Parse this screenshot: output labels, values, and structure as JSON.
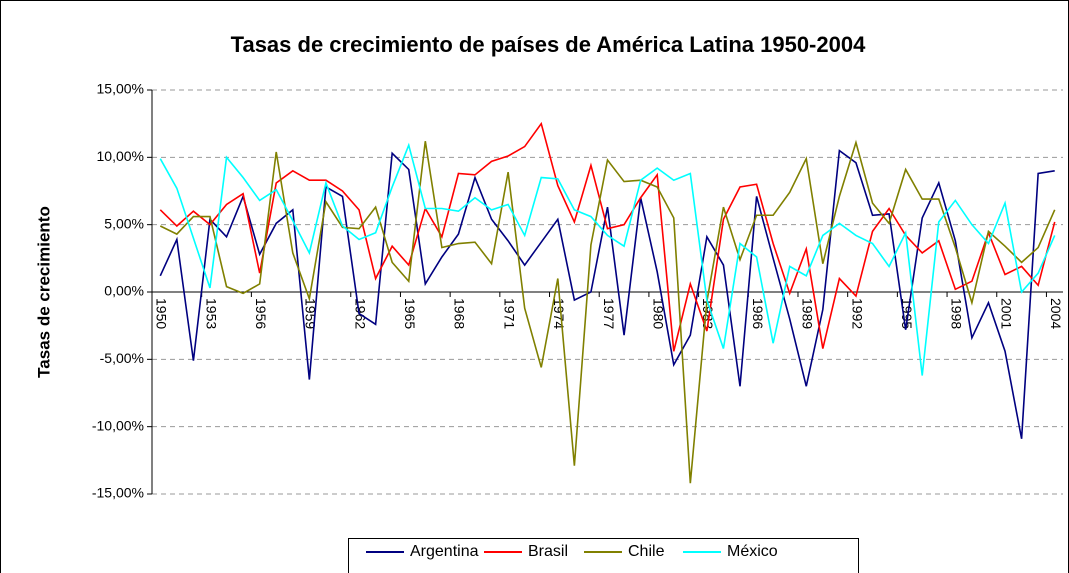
{
  "chart_data": {
    "type": "line",
    "title": "Tasas de crecimiento de países de América Latina 1950-2004",
    "y_label": "Tasas de crecimiento",
    "x": [
      1950,
      1951,
      1952,
      1953,
      1954,
      1955,
      1956,
      1957,
      1958,
      1959,
      1960,
      1961,
      1962,
      1963,
      1964,
      1965,
      1966,
      1967,
      1968,
      1969,
      1970,
      1971,
      1972,
      1973,
      1974,
      1975,
      1976,
      1977,
      1978,
      1979,
      1980,
      1981,
      1982,
      1983,
      1984,
      1985,
      1986,
      1987,
      1988,
      1989,
      1990,
      1991,
      1992,
      1993,
      1994,
      1995,
      1996,
      1997,
      1998,
      1999,
      2000,
      2001,
      2002,
      2003,
      2004
    ],
    "xlim": [
      1950,
      2004
    ],
    "xticks": [
      1950,
      1953,
      1956,
      1959,
      1962,
      1965,
      1968,
      1971,
      1974,
      1977,
      1980,
      1983,
      1986,
      1989,
      1992,
      1995,
      1998,
      2001,
      2004
    ],
    "ylim": [
      -15,
      15
    ],
    "yticks": [
      {
        "value": -15,
        "label": "-15,00%"
      },
      {
        "value": -10,
        "label": "-10,00%"
      },
      {
        "value": -5,
        "label": "-5,00%"
      },
      {
        "value": 0,
        "label": "0,00%"
      },
      {
        "value": 5,
        "label": "5,00%"
      },
      {
        "value": 10,
        "label": "10,00%"
      },
      {
        "value": 15,
        "label": "15,00%"
      }
    ],
    "grid": true,
    "legend": "bottom",
    "series": [
      {
        "name": "Argentina",
        "color": "#000080",
        "values": [
          1.2,
          3.9,
          -5.1,
          5.4,
          4.1,
          7.1,
          2.8,
          5.1,
          6.1,
          -6.5,
          7.8,
          7.1,
          -1.6,
          -2.4,
          10.3,
          9.1,
          0.6,
          2.6,
          4.3,
          8.5,
          5.4,
          3.8,
          2.0,
          3.7,
          5.4,
          -0.6,
          0.0,
          6.3,
          -3.2,
          7.0,
          1.5,
          -5.4,
          -3.2,
          4.1,
          2.0,
          -7.0,
          7.1,
          2.5,
          -2.0,
          -7.0,
          -1.3,
          10.5,
          9.6,
          5.7,
          5.8,
          -2.8,
          5.5,
          8.1,
          3.8,
          -3.4,
          -0.8,
          -4.4,
          -10.9,
          8.8,
          9.0
        ]
      },
      {
        "name": "Brasil",
        "color": "#ff0000",
        "values": [
          6.1,
          4.9,
          6.0,
          5.0,
          6.5,
          7.3,
          1.4,
          8.1,
          9.0,
          8.3,
          8.3,
          7.5,
          6.1,
          1.0,
          3.4,
          2.0,
          6.2,
          4.1,
          8.8,
          8.7,
          9.7,
          10.1,
          10.8,
          12.5,
          7.9,
          5.2,
          9.4,
          4.7,
          5.0,
          7.0,
          8.7,
          -4.4,
          0.6,
          -2.9,
          5.4,
          7.8,
          8.0,
          3.6,
          -0.1,
          3.2,
          -4.2,
          1.0,
          -0.3,
          4.5,
          6.2,
          4.2,
          2.9,
          3.8,
          0.2,
          0.8,
          4.4,
          1.3,
          1.9,
          0.5,
          5.2
        ]
      },
      {
        "name": "Chile",
        "color": "#808000",
        "values": [
          4.9,
          4.3,
          5.6,
          5.6,
          0.4,
          -0.1,
          0.6,
          10.4,
          2.9,
          -0.5,
          6.7,
          4.8,
          4.7,
          6.3,
          2.2,
          0.8,
          11.2,
          3.3,
          3.6,
          3.7,
          2.1,
          8.9,
          -1.2,
          -5.6,
          1.0,
          -12.9,
          3.5,
          9.8,
          8.2,
          8.3,
          7.8,
          5.5,
          -14.2,
          -0.7,
          6.3,
          2.4,
          5.7,
          5.7,
          7.4,
          9.9,
          2.1,
          7.1,
          11.1,
          6.6,
          5.1,
          9.1,
          6.9,
          6.9,
          3.3,
          -0.8,
          4.5,
          3.4,
          2.2,
          3.3,
          6.1
        ]
      },
      {
        "name": "México",
        "color": "#00ffff",
        "values": [
          9.9,
          7.7,
          4.0,
          0.3,
          10.0,
          8.5,
          6.8,
          7.6,
          5.3,
          2.9,
          8.1,
          4.9,
          3.9,
          4.4,
          7.8,
          10.9,
          6.2,
          6.2,
          6.0,
          7.0,
          6.1,
          6.5,
          4.2,
          8.5,
          8.4,
          6.1,
          5.6,
          4.2,
          3.4,
          8.3,
          9.2,
          8.3,
          8.8,
          -0.6,
          -4.2,
          3.6,
          2.6,
          -3.8,
          1.9,
          1.2,
          4.2,
          5.1,
          4.2,
          3.6,
          1.9,
          4.4,
          -6.2,
          5.2,
          6.8,
          5.0,
          3.6,
          6.6,
          0.0,
          1.4,
          4.2
        ]
      }
    ]
  }
}
